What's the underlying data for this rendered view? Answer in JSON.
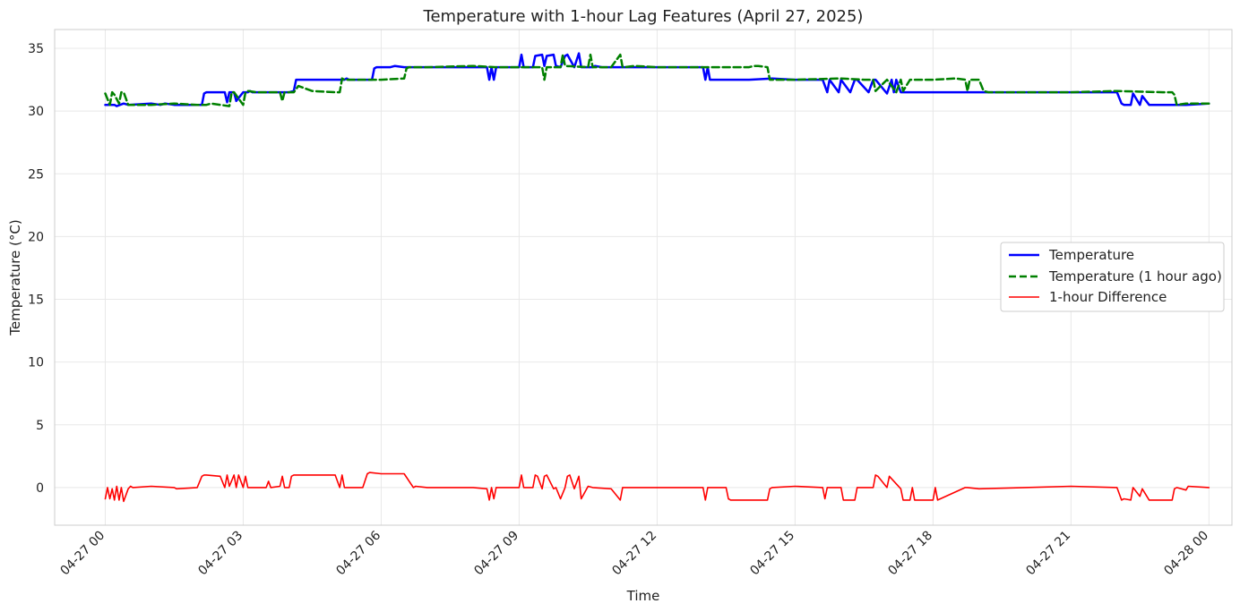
{
  "chart_data": {
    "type": "line",
    "title": "Temperature with 1-hour Lag Features (April 27, 2025)",
    "xlabel": "Time",
    "ylabel": "Temperature (°C)",
    "xlim_hours": [
      -1.1,
      24.5
    ],
    "ylim": [
      -3,
      36.5
    ],
    "grid": true,
    "legend_position": "center-right",
    "x_ticks": [
      {
        "hour": 0,
        "label": "04-27 00"
      },
      {
        "hour": 3,
        "label": "04-27 03"
      },
      {
        "hour": 6,
        "label": "04-27 06"
      },
      {
        "hour": 9,
        "label": "04-27 09"
      },
      {
        "hour": 12,
        "label": "04-27 12"
      },
      {
        "hour": 15,
        "label": "04-27 15"
      },
      {
        "hour": 18,
        "label": "04-27 18"
      },
      {
        "hour": 21,
        "label": "04-27 21"
      },
      {
        "hour": 24,
        "label": "04-28 00"
      }
    ],
    "y_ticks": [
      0,
      5,
      10,
      15,
      20,
      25,
      30,
      35
    ],
    "series": [
      {
        "name": "Temperature",
        "color": "#0000ff",
        "style": "solid",
        "x": [
          0,
          0.2,
          0.25,
          0.4,
          0.5,
          1.0,
          1.2,
          1.3,
          1.5,
          2.1,
          2.15,
          2.2,
          2.3,
          2.6,
          2.65,
          2.7,
          2.8,
          2.85,
          3.0,
          3.1,
          3.15,
          3.2,
          4.0,
          4.1,
          4.15,
          4.25,
          5.2,
          5.25,
          5.3,
          5.8,
          5.85,
          5.9,
          6.2,
          6.3,
          6.5,
          8.2,
          8.3,
          8.35,
          8.4,
          8.45,
          8.5,
          9.0,
          9.05,
          9.1,
          9.3,
          9.35,
          9.5,
          9.55,
          9.6,
          9.75,
          9.8,
          9.9,
          10.0,
          10.05,
          10.2,
          10.3,
          10.35,
          10.5,
          10.6,
          10.65,
          10.8,
          11.0,
          12.5,
          13.0,
          13.05,
          13.1,
          13.15,
          13.5,
          14.0,
          14.5,
          15.0,
          15.6,
          15.7,
          15.75,
          15.95,
          16.0,
          16.2,
          16.3,
          16.35,
          16.6,
          16.7,
          16.75,
          17.0,
          17.1,
          17.15,
          17.2,
          17.3,
          17.35,
          17.6,
          17.65,
          18.0,
          19.0,
          20.0,
          21.0,
          22.0,
          22.1,
          22.15,
          22.3,
          22.35,
          22.5,
          22.55,
          22.7,
          22.75,
          23.0,
          23.5,
          24.0
        ],
        "values": [
          30.5,
          30.5,
          30.4,
          30.6,
          30.5,
          30.6,
          30.5,
          30.6,
          30.5,
          30.5,
          31.4,
          31.5,
          31.5,
          31.5,
          30.7,
          31.5,
          31.5,
          30.8,
          31.5,
          31.5,
          31.6,
          31.5,
          31.5,
          31.6,
          32.5,
          32.5,
          32.5,
          32.6,
          32.5,
          32.5,
          33.4,
          33.5,
          33.5,
          33.6,
          33.5,
          33.5,
          33.5,
          32.5,
          33.5,
          32.5,
          33.5,
          33.5,
          34.5,
          33.5,
          33.5,
          34.4,
          34.5,
          33.6,
          34.4,
          34.5,
          33.6,
          33.5,
          34.4,
          34.5,
          33.5,
          34.6,
          33.5,
          33.5,
          33.5,
          33.6,
          33.5,
          33.5,
          33.5,
          33.5,
          32.5,
          33.5,
          32.5,
          32.5,
          32.5,
          32.6,
          32.5,
          32.5,
          31.5,
          32.5,
          31.5,
          32.5,
          31.5,
          32.5,
          32.5,
          31.5,
          32.5,
          32.5,
          31.4,
          32.5,
          31.5,
          32.5,
          31.5,
          31.5,
          31.5,
          31.5,
          31.5,
          31.5,
          31.5,
          31.5,
          31.5,
          30.6,
          30.5,
          30.5,
          31.4,
          30.5,
          31.2,
          30.5,
          30.5,
          30.5,
          30.5,
          30.6
        ]
      },
      {
        "name": "Temperature (1 hour ago)",
        "color": "#008000",
        "style": "dashed",
        "x": [
          0,
          0.1,
          0.15,
          0.2,
          0.3,
          0.35,
          0.4,
          0.5,
          0.55,
          1.0,
          1.5,
          2.0,
          2.2,
          2.3,
          2.5,
          2.7,
          2.75,
          2.8,
          3.0,
          3.05,
          3.1,
          3.3,
          3.35,
          3.5,
          3.8,
          3.85,
          3.9,
          4.0,
          4.1,
          4.2,
          4.5,
          5.0,
          5.1,
          5.15,
          5.2,
          6.0,
          6.5,
          6.55,
          6.6,
          7.0,
          8.0,
          8.5,
          8.6,
          9.0,
          9.5,
          9.55,
          9.6,
          9.9,
          9.95,
          10.0,
          10.5,
          10.55,
          10.6,
          11.0,
          11.2,
          11.25,
          11.3,
          11.5,
          12.0,
          13.0,
          13.5,
          14.0,
          14.1,
          14.2,
          14.4,
          14.45,
          14.5,
          15.0,
          16.0,
          16.5,
          16.7,
          16.75,
          17.0,
          17.2,
          17.3,
          17.35,
          17.5,
          17.6,
          17.65,
          18.0,
          18.5,
          18.7,
          18.75,
          18.8,
          19.0,
          19.1,
          19.2,
          20.0,
          21.0,
          22.0,
          23.0,
          23.2,
          23.25,
          23.3,
          23.5,
          24.0
        ],
        "values": [
          31.4,
          30.5,
          31.5,
          31.3,
          30.6,
          31.5,
          31.5,
          30.5,
          30.5,
          30.5,
          30.6,
          30.5,
          30.5,
          30.6,
          30.5,
          30.4,
          31.5,
          31.5,
          30.5,
          31.5,
          31.6,
          31.5,
          31.5,
          31.5,
          31.5,
          30.8,
          31.5,
          31.5,
          31.5,
          32.0,
          31.6,
          31.5,
          31.5,
          32.6,
          32.5,
          32.5,
          32.6,
          33.4,
          33.5,
          33.5,
          33.6,
          33.5,
          33.5,
          33.5,
          33.5,
          32.5,
          33.5,
          33.5,
          34.5,
          33.6,
          33.5,
          34.5,
          33.5,
          33.5,
          34.5,
          33.5,
          33.5,
          33.6,
          33.5,
          33.5,
          33.5,
          33.5,
          33.6,
          33.6,
          33.5,
          32.5,
          32.5,
          32.5,
          32.6,
          32.5,
          32.5,
          31.6,
          32.5,
          31.5,
          32.5,
          31.6,
          32.5,
          32.5,
          32.5,
          32.5,
          32.6,
          32.5,
          31.6,
          32.5,
          32.5,
          31.6,
          31.5,
          31.5,
          31.5,
          31.6,
          31.5,
          31.5,
          31.3,
          30.5,
          30.6,
          30.6
        ]
      },
      {
        "name": "1-hour Difference",
        "color": "#ff0000",
        "style": "thin",
        "x": [
          0,
          0.05,
          0.1,
          0.15,
          0.2,
          0.25,
          0.3,
          0.35,
          0.4,
          0.5,
          0.55,
          0.6,
          1.0,
          1.5,
          1.55,
          2.0,
          2.1,
          2.15,
          2.2,
          2.5,
          2.6,
          2.65,
          2.7,
          2.8,
          2.85,
          2.9,
          3.0,
          3.05,
          3.1,
          3.5,
          3.55,
          3.6,
          3.8,
          3.85,
          3.9,
          4.0,
          4.05,
          4.1,
          4.2,
          5.0,
          5.1,
          5.15,
          5.2,
          5.6,
          5.7,
          5.75,
          6.0,
          6.5,
          6.7,
          6.75,
          7.0,
          8.0,
          8.3,
          8.35,
          8.4,
          8.45,
          8.5,
          9.0,
          9.05,
          9.1,
          9.3,
          9.35,
          9.4,
          9.5,
          9.55,
          9.6,
          9.75,
          9.8,
          9.9,
          10.0,
          10.05,
          10.1,
          10.2,
          10.3,
          10.35,
          10.5,
          10.6,
          11.0,
          11.2,
          11.25,
          11.3,
          12.0,
          13.0,
          13.05,
          13.1,
          13.5,
          13.55,
          13.6,
          14.0,
          14.4,
          14.45,
          14.5,
          15.0,
          15.6,
          15.65,
          15.7,
          16.0,
          16.05,
          16.3,
          16.35,
          16.7,
          16.75,
          16.8,
          17.0,
          17.05,
          17.3,
          17.35,
          17.5,
          17.55,
          17.6,
          18.0,
          18.05,
          18.1,
          18.7,
          18.75,
          19.0,
          20.0,
          21.0,
          22.0,
          22.1,
          22.15,
          22.3,
          22.35,
          22.5,
          22.55,
          22.7,
          22.75,
          23.2,
          23.25,
          23.3,
          23.5,
          23.55,
          24.0
        ],
        "values": [
          -0.9,
          0,
          -0.9,
          -0.1,
          -1.0,
          0.1,
          -1.0,
          0,
          -1.1,
          -0.1,
          0.1,
          0,
          0.1,
          0,
          -0.1,
          0,
          0.9,
          1.0,
          1.0,
          0.9,
          0,
          1.0,
          0.1,
          1.0,
          0,
          1.0,
          0,
          0.9,
          0,
          0,
          0.5,
          0,
          0.1,
          0.9,
          0,
          0,
          0.9,
          1.0,
          1.0,
          1.0,
          0,
          1.0,
          0,
          0,
          1.1,
          1.2,
          1.1,
          1.1,
          0,
          0.1,
          0,
          0,
          -0.1,
          -1.0,
          0,
          -0.9,
          0,
          0,
          1.0,
          0,
          0,
          1.0,
          0.9,
          -0.1,
          0.9,
          1.0,
          -0.1,
          0,
          -0.9,
          0,
          0.9,
          1.0,
          -0.1,
          0.9,
          -0.9,
          0.1,
          0,
          -0.1,
          -1.0,
          0,
          0,
          0,
          0,
          -1.0,
          0,
          0,
          -0.9,
          -1.0,
          -1.0,
          -1.0,
          -0.1,
          0,
          0.1,
          0,
          -0.9,
          0,
          0,
          -1.0,
          -1.0,
          0,
          0,
          1.0,
          0.9,
          0,
          0.9,
          -0.1,
          -1.0,
          -1.0,
          0,
          -1.0,
          -1.0,
          0,
          -1.0,
          0,
          0,
          -0.1,
          0,
          0.1,
          0,
          -1.0,
          -0.9,
          -1.0,
          0,
          -0.7,
          -0.1,
          -1.0,
          -1.0,
          -1.0,
          -0.1,
          0,
          -0.2,
          0.1,
          0
        ]
      }
    ]
  }
}
